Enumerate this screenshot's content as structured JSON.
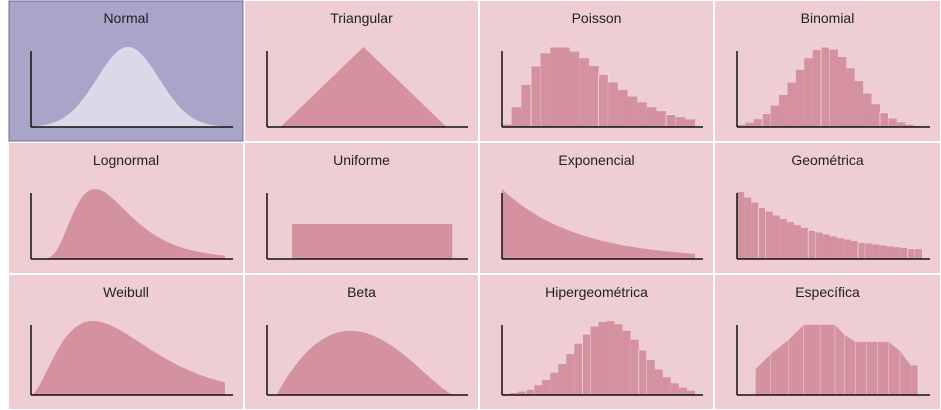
{
  "tiles": [
    "Normal",
    "Triangular",
    "Poisson",
    "Binomial",
    "Lognormal",
    "Uniforme",
    "Exponencial",
    "Geométrica",
    "Weibull",
    "Beta",
    "Hipergeométrica",
    "Específica"
  ]
}
